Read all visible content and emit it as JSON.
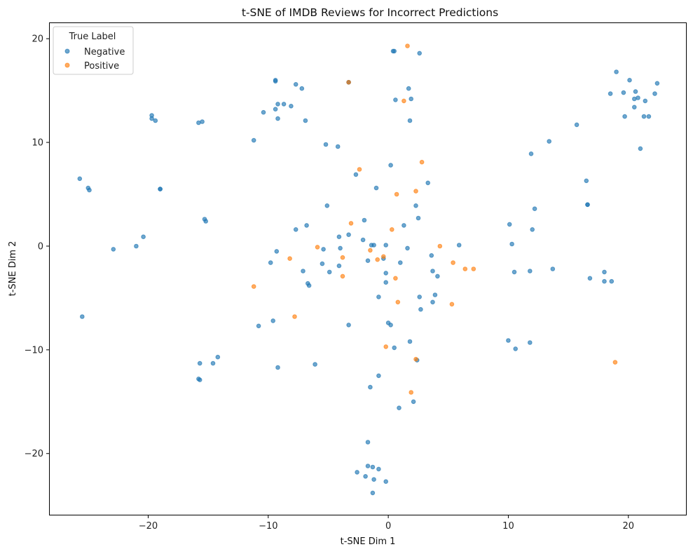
{
  "chart_data": {
    "type": "scatter",
    "title": "t-SNE of IMDB Reviews for Incorrect Predictions",
    "xlabel": "t-SNE Dim 1",
    "ylabel": "t-SNE Dim 2",
    "xlim": [
      -28.2,
      24.8
    ],
    "ylim": [
      -25.9,
      21.5
    ],
    "xticks": [
      -20,
      -10,
      0,
      10,
      20
    ],
    "yticks": [
      -20,
      -10,
      0,
      10,
      20
    ],
    "xtick_labels": [
      "−20",
      "−10",
      "0",
      "10",
      "20"
    ],
    "ytick_labels": [
      "−20",
      "−10",
      "0",
      "10",
      "20"
    ],
    "grid": false,
    "legend": {
      "title": "True Label",
      "position": "top-left"
    },
    "series": [
      {
        "name": "Negative",
        "color": "#1f77b4",
        "points": [
          [
            -25.7,
            6.5
          ],
          [
            -25.0,
            5.6
          ],
          [
            -24.9,
            5.4
          ],
          [
            -25.5,
            -6.8
          ],
          [
            -22.9,
            -0.3
          ],
          [
            -21.0,
            0.0
          ],
          [
            -20.4,
            0.9
          ],
          [
            -19.7,
            12.6
          ],
          [
            -19.7,
            12.3
          ],
          [
            -19.4,
            12.1
          ],
          [
            -19.0,
            5.5
          ],
          [
            -19.0,
            5.5
          ],
          [
            -15.8,
            11.9
          ],
          [
            -15.5,
            12.0
          ],
          [
            -15.3,
            2.6
          ],
          [
            -15.2,
            2.4
          ],
          [
            -15.7,
            -11.3
          ],
          [
            -15.8,
            -12.8
          ],
          [
            -15.7,
            -12.9
          ],
          [
            -14.6,
            -11.3
          ],
          [
            -14.2,
            -10.7
          ],
          [
            -11.2,
            10.2
          ],
          [
            -10.4,
            12.9
          ],
          [
            -9.8,
            -1.6
          ],
          [
            -9.6,
            -7.2
          ],
          [
            -10.8,
            -7.7
          ],
          [
            -9.2,
            -11.7
          ],
          [
            -9.4,
            15.9
          ],
          [
            -9.4,
            16.0
          ],
          [
            -9.2,
            13.7
          ],
          [
            -9.4,
            13.2
          ],
          [
            -9.2,
            12.3
          ],
          [
            -8.7,
            13.7
          ],
          [
            -8.1,
            13.5
          ],
          [
            -7.7,
            15.6
          ],
          [
            -7.2,
            15.2
          ],
          [
            -6.9,
            12.1
          ],
          [
            -7.7,
            1.6
          ],
          [
            -6.8,
            2.0
          ],
          [
            -7.1,
            -2.4
          ],
          [
            -6.7,
            -3.6
          ],
          [
            -6.6,
            -3.8
          ],
          [
            -6.1,
            -11.4
          ],
          [
            -9.3,
            -0.5
          ],
          [
            -5.2,
            9.8
          ],
          [
            -5.1,
            3.9
          ],
          [
            -5.4,
            -0.3
          ],
          [
            -5.5,
            -1.7
          ],
          [
            -4.2,
            9.6
          ],
          [
            -4.1,
            0.9
          ],
          [
            -4.0,
            -0.2
          ],
          [
            -4.1,
            -1.9
          ],
          [
            -3.3,
            1.1
          ],
          [
            -4.9,
            -2.5
          ],
          [
            -3.3,
            -7.6
          ],
          [
            -3.3,
            15.8
          ],
          [
            -3.3,
            15.8
          ],
          [
            -2.7,
            6.9
          ],
          [
            -2.0,
            2.5
          ],
          [
            -2.1,
            0.6
          ],
          [
            -1.7,
            -1.4
          ],
          [
            -1.2,
            0.1
          ],
          [
            -1.4,
            0.1
          ],
          [
            -1.0,
            5.6
          ],
          [
            -0.8,
            -4.9
          ],
          [
            -0.4,
            -1.2
          ],
          [
            -0.2,
            0.1
          ],
          [
            -0.2,
            -2.6
          ],
          [
            -0.2,
            -3.5
          ],
          [
            0.0,
            -7.4
          ],
          [
            0.2,
            -7.6
          ],
          [
            0.2,
            7.8
          ],
          [
            0.4,
            18.8
          ],
          [
            0.5,
            18.8
          ],
          [
            0.6,
            14.1
          ],
          [
            1.0,
            -1.6
          ],
          [
            0.5,
            -9.8
          ],
          [
            1.3,
            2.0
          ],
          [
            1.6,
            -0.2
          ],
          [
            1.7,
            15.2
          ],
          [
            1.9,
            14.2
          ],
          [
            1.8,
            12.1
          ],
          [
            1.8,
            -9.2
          ],
          [
            2.1,
            -15.0
          ],
          [
            0.9,
            -15.6
          ],
          [
            2.3,
            3.9
          ],
          [
            2.5,
            2.7
          ],
          [
            2.4,
            -11.0
          ],
          [
            2.6,
            18.6
          ],
          [
            2.6,
            -4.9
          ],
          [
            2.7,
            -6.1
          ],
          [
            3.3,
            6.1
          ],
          [
            3.6,
            -0.9
          ],
          [
            3.7,
            -2.4
          ],
          [
            3.7,
            -5.4
          ],
          [
            3.9,
            -4.7
          ],
          [
            4.1,
            -2.9
          ],
          [
            5.9,
            0.1
          ],
          [
            -1.5,
            -13.6
          ],
          [
            -0.8,
            -12.5
          ],
          [
            -1.7,
            -18.9
          ],
          [
            -1.7,
            -21.2
          ],
          [
            -1.3,
            -21.3
          ],
          [
            -0.8,
            -21.5
          ],
          [
            -2.6,
            -21.8
          ],
          [
            -1.9,
            -22.2
          ],
          [
            -1.2,
            -22.5
          ],
          [
            -0.2,
            -22.7
          ],
          [
            -1.3,
            -23.8
          ],
          [
            10.1,
            2.1
          ],
          [
            10.3,
            0.2
          ],
          [
            10.5,
            -2.5
          ],
          [
            10.0,
            -9.1
          ],
          [
            10.6,
            -9.9
          ],
          [
            11.9,
            8.9
          ],
          [
            12.0,
            1.6
          ],
          [
            12.2,
            3.6
          ],
          [
            11.8,
            -2.4
          ],
          [
            11.8,
            -9.3
          ],
          [
            13.4,
            10.1
          ],
          [
            13.7,
            -2.2
          ],
          [
            15.7,
            11.7
          ],
          [
            16.5,
            6.3
          ],
          [
            16.6,
            4.0
          ],
          [
            16.6,
            4.0
          ],
          [
            16.8,
            -3.1
          ],
          [
            18.0,
            -2.5
          ],
          [
            18.0,
            -3.4
          ],
          [
            18.6,
            -3.4
          ],
          [
            19.0,
            16.8
          ],
          [
            18.5,
            14.7
          ],
          [
            19.6,
            14.8
          ],
          [
            19.7,
            12.5
          ],
          [
            20.1,
            16.0
          ],
          [
            20.5,
            13.4
          ],
          [
            20.5,
            14.2
          ],
          [
            20.6,
            14.9
          ],
          [
            20.8,
            14.3
          ],
          [
            21.0,
            9.4
          ],
          [
            21.3,
            12.5
          ],
          [
            21.4,
            14.0
          ],
          [
            21.7,
            12.5
          ],
          [
            22.2,
            14.7
          ],
          [
            22.4,
            15.7
          ]
        ]
      },
      {
        "name": "Positive",
        "color": "#ff7f0e",
        "points": [
          [
            1.6,
            19.3
          ],
          [
            1.3,
            14.0
          ],
          [
            -3.3,
            15.8
          ],
          [
            -2.4,
            7.4
          ],
          [
            2.8,
            8.1
          ],
          [
            0.7,
            5.0
          ],
          [
            2.3,
            5.3
          ],
          [
            -3.1,
            2.2
          ],
          [
            0.3,
            1.6
          ],
          [
            -5.9,
            -0.1
          ],
          [
            -1.5,
            -0.4
          ],
          [
            -0.4,
            -1.0
          ],
          [
            -0.9,
            -1.3
          ],
          [
            4.3,
            0.0
          ],
          [
            -8.2,
            -1.2
          ],
          [
            -3.8,
            -1.1
          ],
          [
            -3.8,
            -2.9
          ],
          [
            0.6,
            -3.1
          ],
          [
            5.4,
            -1.6
          ],
          [
            6.4,
            -2.2
          ],
          [
            7.1,
            -2.2
          ],
          [
            -11.2,
            -3.9
          ],
          [
            0.8,
            -5.4
          ],
          [
            5.3,
            -5.6
          ],
          [
            -7.8,
            -6.8
          ],
          [
            -0.2,
            -9.7
          ],
          [
            2.3,
            -10.9
          ],
          [
            1.9,
            -14.1
          ],
          [
            18.9,
            -11.2
          ]
        ]
      }
    ]
  }
}
